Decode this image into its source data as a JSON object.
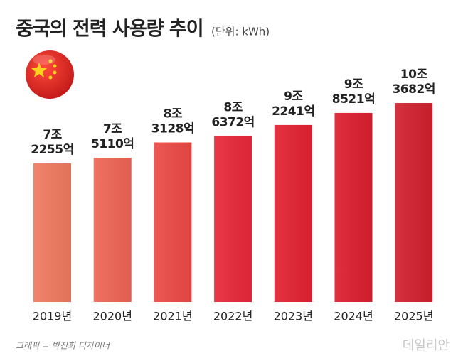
{
  "chart_data": {
    "type": "bar",
    "title": "중국의 전력 사용량 추이",
    "subtitle": "(단위: kWh)",
    "categories": [
      "2019년",
      "2020년",
      "2021년",
      "2022년",
      "2023년",
      "2024년",
      "2025년"
    ],
    "values": [
      7225500000000,
      7511000000000,
      8312800000000,
      8637200000000,
      9224100000000,
      9852100000000,
      10368200000000
    ],
    "value_labels": [
      [
        "7조",
        "2255억"
      ],
      [
        "7조",
        "5110억"
      ],
      [
        "8조",
        "3128억"
      ],
      [
        "8조",
        "6372억"
      ],
      [
        "9조",
        "2241억"
      ],
      [
        "9조",
        "8521억"
      ],
      [
        "10조",
        "3682억"
      ]
    ],
    "colors": [
      "#f07a60",
      "#ef6555",
      "#ec4a46",
      "#e8283a",
      "#e32232",
      "#dd1f30",
      "#d2202e"
    ],
    "credit": "그래픽 = 박진희 디자이너",
    "watermark": "데일리안"
  }
}
